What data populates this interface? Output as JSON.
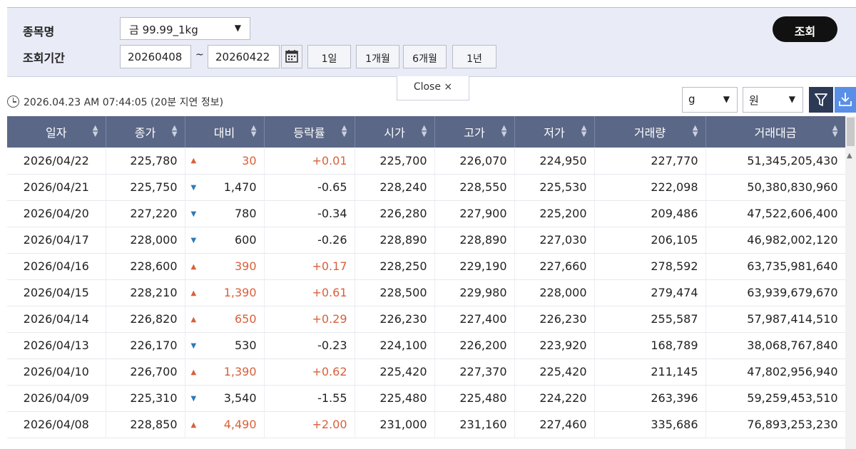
{
  "search": {
    "item_label": "종목명",
    "item_value": "금 99.99_1kg",
    "period_label": "조회기간",
    "date_from": "20260408",
    "date_to": "20260422",
    "range_separator": "~",
    "period_buttons": [
      "1일",
      "1개월",
      "6개월",
      "1년"
    ],
    "query_button": "조회",
    "close_label": "Close  ×"
  },
  "status": {
    "timestamp": "2026.04.23 AM 07:44:05 (20분 지연 정보)"
  },
  "units": {
    "weight": "g",
    "currency": "원"
  },
  "icons": {
    "calendar": "calendar-icon",
    "filter": "filter-icon",
    "download": "download-icon",
    "clock": "clock-icon"
  },
  "colors": {
    "header_bg": "#5a6786",
    "up": "#d9603a",
    "down": "#2b7ab8",
    "query_button": "#111111",
    "download_button": "#5a8fe8",
    "filter_button": "#2c3a55"
  },
  "table": {
    "columns": [
      "일자",
      "종가",
      "대비",
      "등락률",
      "시가",
      "고가",
      "저가",
      "거래량",
      "거래대금"
    ],
    "rows": [
      {
        "date": "2026/04/22",
        "close": "225,780",
        "dir": "up",
        "change": "30",
        "rate": "+0.01",
        "open": "225,700",
        "high": "226,070",
        "low": "224,950",
        "volume": "227,770",
        "amount": "51,345,205,430"
      },
      {
        "date": "2026/04/21",
        "close": "225,750",
        "dir": "down",
        "change": "1,470",
        "rate": "-0.65",
        "open": "228,240",
        "high": "228,550",
        "low": "225,530",
        "volume": "222,098",
        "amount": "50,380,830,960"
      },
      {
        "date": "2026/04/20",
        "close": "227,220",
        "dir": "down",
        "change": "780",
        "rate": "-0.34",
        "open": "226,280",
        "high": "227,900",
        "low": "225,200",
        "volume": "209,486",
        "amount": "47,522,606,400"
      },
      {
        "date": "2026/04/17",
        "close": "228,000",
        "dir": "down",
        "change": "600",
        "rate": "-0.26",
        "open": "228,890",
        "high": "228,890",
        "low": "227,030",
        "volume": "206,105",
        "amount": "46,982,002,120"
      },
      {
        "date": "2026/04/16",
        "close": "228,600",
        "dir": "up",
        "change": "390",
        "rate": "+0.17",
        "open": "228,250",
        "high": "229,190",
        "low": "227,660",
        "volume": "278,592",
        "amount": "63,735,981,640"
      },
      {
        "date": "2026/04/15",
        "close": "228,210",
        "dir": "up",
        "change": "1,390",
        "rate": "+0.61",
        "open": "228,500",
        "high": "229,980",
        "low": "228,000",
        "volume": "279,474",
        "amount": "63,939,679,670"
      },
      {
        "date": "2026/04/14",
        "close": "226,820",
        "dir": "up",
        "change": "650",
        "rate": "+0.29",
        "open": "226,230",
        "high": "227,400",
        "low": "226,230",
        "volume": "255,587",
        "amount": "57,987,414,510"
      },
      {
        "date": "2026/04/13",
        "close": "226,170",
        "dir": "down",
        "change": "530",
        "rate": "-0.23",
        "open": "224,100",
        "high": "226,200",
        "low": "223,920",
        "volume": "168,789",
        "amount": "38,068,767,840"
      },
      {
        "date": "2026/04/10",
        "close": "226,700",
        "dir": "up",
        "change": "1,390",
        "rate": "+0.62",
        "open": "225,420",
        "high": "227,370",
        "low": "225,420",
        "volume": "211,145",
        "amount": "47,802,956,940"
      },
      {
        "date": "2026/04/09",
        "close": "225,310",
        "dir": "down",
        "change": "3,540",
        "rate": "-1.55",
        "open": "225,480",
        "high": "225,480",
        "low": "224,220",
        "volume": "263,396",
        "amount": "59,259,453,510"
      },
      {
        "date": "2026/04/08",
        "close": "228,850",
        "dir": "up",
        "change": "4,490",
        "rate": "+2.00",
        "open": "231,000",
        "high": "231,160",
        "low": "227,460",
        "volume": "335,686",
        "amount": "76,893,253,230"
      }
    ]
  }
}
